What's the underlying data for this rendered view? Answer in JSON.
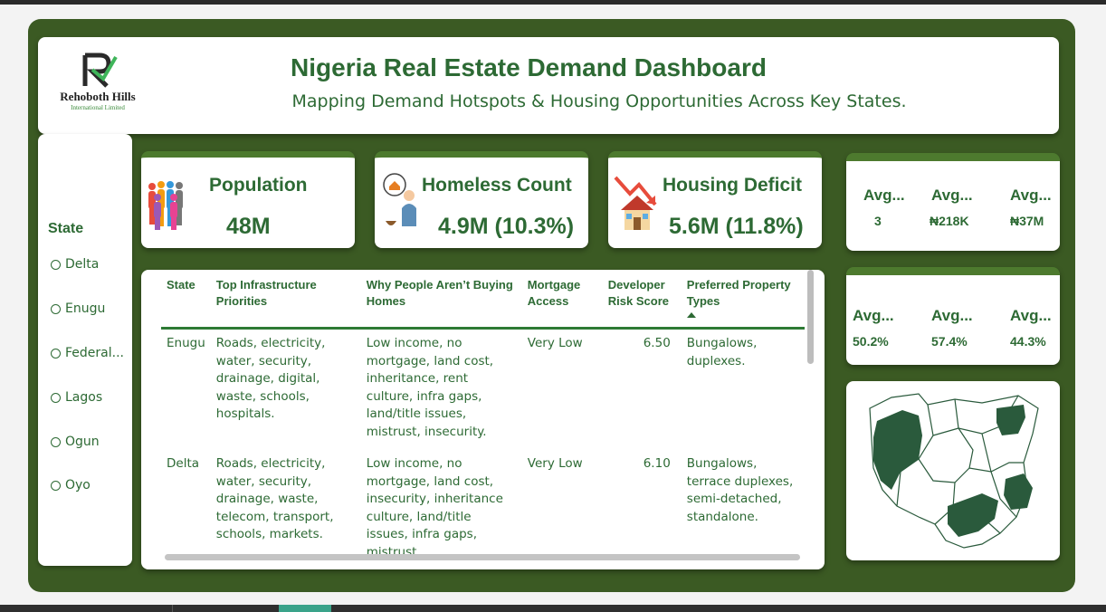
{
  "header": {
    "title": "Nigeria Real Estate Demand Dashboard",
    "subtitle": "Mapping Demand Hotspots & Housing Opportunities Across Key States.",
    "logo_name": "Rehoboth Hills",
    "logo_sub": "International Limited"
  },
  "slicer": {
    "title": "State",
    "items": [
      "Delta",
      "Enugu",
      "Federal...",
      "Lagos",
      "Ogun",
      "Oyo"
    ]
  },
  "kpis": [
    {
      "label": "Population",
      "value": "48M",
      "icon": "people-group-icon"
    },
    {
      "label": "Homeless Count",
      "value": "4.9M (10.3%)",
      "icon": "homeless-person-icon"
    },
    {
      "label": "Housing Deficit",
      "value": "5.6M (11.8%)",
      "icon": "house-decline-icon"
    }
  ],
  "avg_cards": [
    {
      "items": [
        {
          "label": "Avg...",
          "value": "3"
        },
        {
          "label": "Avg...",
          "value": "₦218K"
        },
        {
          "label": "Avg...",
          "value": "₦37M"
        }
      ]
    },
    {
      "items": [
        {
          "label": "Avg...",
          "value": "50.2%"
        },
        {
          "label": "Avg...",
          "value": "57.4%"
        },
        {
          "label": "Avg...",
          "value": "44.3%"
        }
      ]
    }
  ],
  "table": {
    "columns": [
      "State",
      "Top Infrastructure Priorities",
      "Why People Aren’t Buying Homes",
      "Mortgage Access",
      "Developer Risk Score",
      "Preferred Property Types"
    ],
    "rows": [
      [
        "Enugu",
        "Roads, electricity, water, security, drainage, digital, waste, schools, hospitals.",
        "Low income, no mortgage, land cost, inheritance, rent culture, infra gaps, land/title issues, mistrust, insecurity.",
        "Very Low",
        "6.50",
        "Bungalows, duplexes."
      ],
      [
        "Delta",
        "Roads, electricity, water, security, drainage, waste, telecom, transport, schools, markets.",
        "Low income, no mortgage, land cost, insecurity, inheritance culture, land/title issues, infra gaps, mistrust.",
        "Very Low",
        "6.10",
        "Bungalows, terrace duplexes, semi-detached, standalone."
      ]
    ]
  },
  "colors": {
    "frame": "#3b5a23",
    "accent": "#2d6a34",
    "map_fill": "#2a5a3c"
  }
}
